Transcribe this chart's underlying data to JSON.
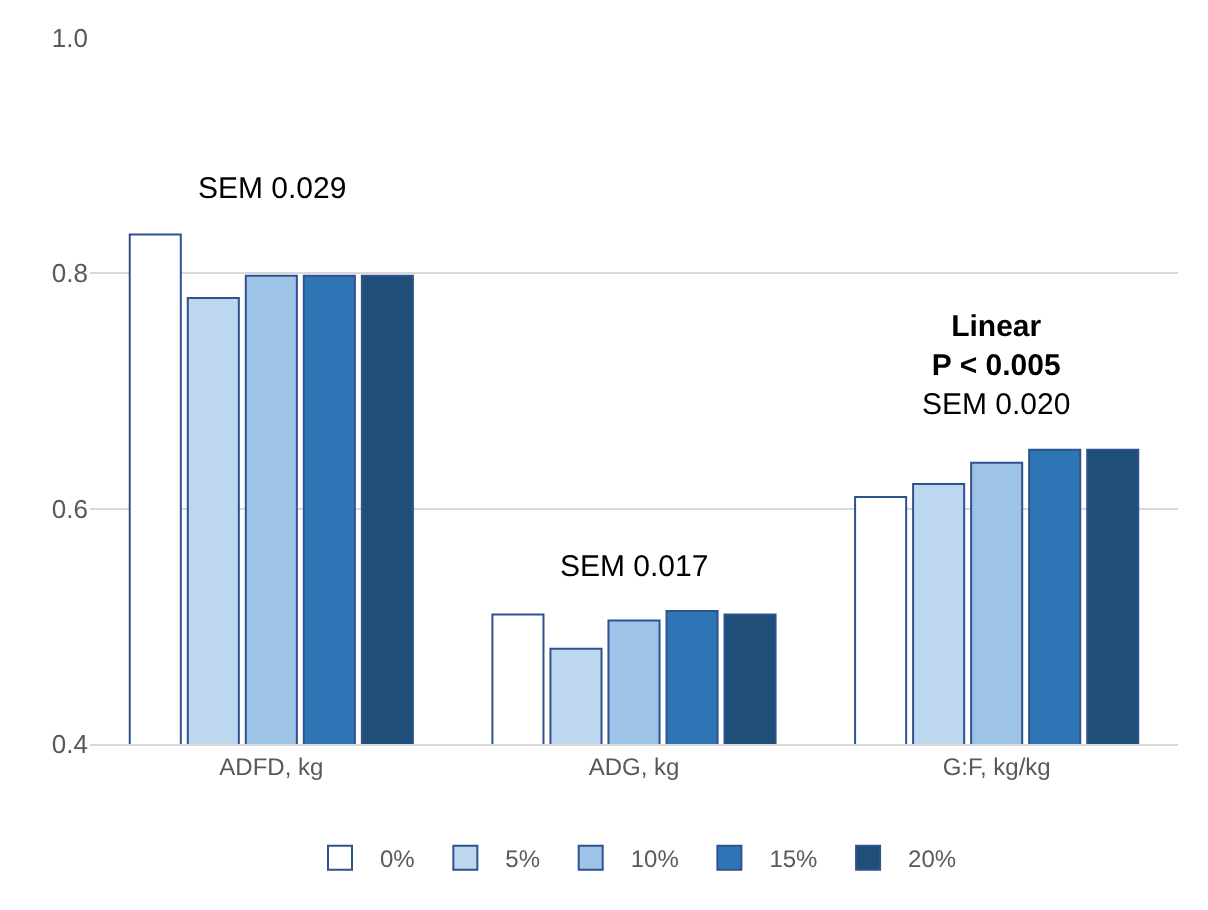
{
  "chart_data": {
    "type": "bar",
    "categories": [
      "ADFD, kg",
      "ADG, kg",
      "G:F, kg/kg"
    ],
    "series": [
      {
        "name": "0%",
        "color": "#ffffff",
        "values": [
          0.833,
          0.51,
          0.61
        ]
      },
      {
        "name": "5%",
        "color": "#bdd7ee",
        "values": [
          0.779,
          0.481,
          0.621
        ]
      },
      {
        "name": "10%",
        "color": "#9dc3e6",
        "values": [
          0.798,
          0.505,
          0.639
        ]
      },
      {
        "name": "15%",
        "color": "#2e75b6",
        "values": [
          0.798,
          0.513,
          0.65
        ]
      },
      {
        "name": "20%",
        "color": "#1f4e79",
        "values": [
          0.798,
          0.51,
          0.65
        ]
      }
    ],
    "annotations": [
      "SEM 0.029",
      "SEM 0.017",
      "Linear\nP < 0.005\nSEM 0.020"
    ],
    "ylim": [
      0.4,
      1.0
    ],
    "yticks": [
      0.4,
      0.6,
      0.8,
      {
        "value": 1.0,
        "label": "1.0"
      }
    ],
    "grid": "y",
    "legend": "bottom"
  }
}
